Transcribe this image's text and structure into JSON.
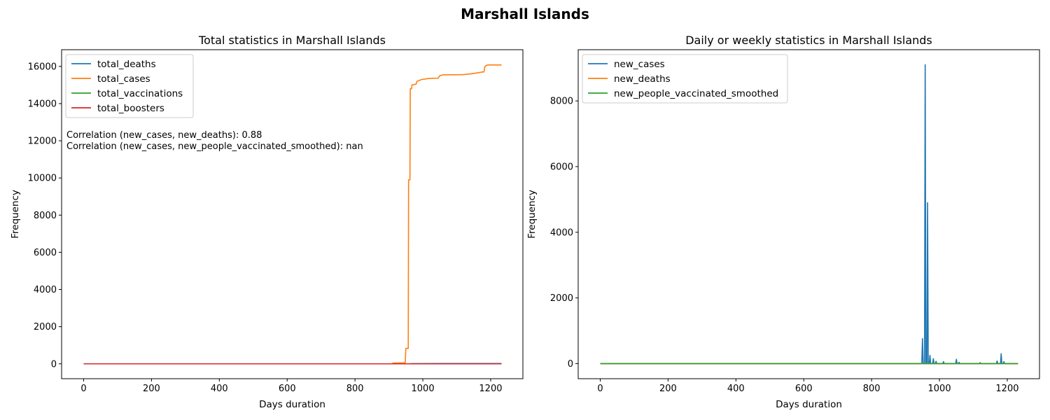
{
  "figure": {
    "title": "Marshall Islands"
  },
  "chart_data": [
    {
      "type": "line",
      "title": "Total statistics in Marshall Islands",
      "xlabel": "Days duration",
      "ylabel": "Frequency",
      "xlim": [
        -65,
        1295
      ],
      "ylim": [
        -800,
        16900
      ],
      "xticks": [
        0,
        200,
        400,
        600,
        800,
        1000,
        1200
      ],
      "yticks": [
        0,
        2000,
        4000,
        6000,
        8000,
        10000,
        12000,
        14000,
        16000
      ],
      "legend_placement": "upper-left",
      "annotations": [
        "Correlation (new_cases, new_deaths): 0.88",
        "Correlation (new_cases, new_people_vaccinated_smoothed): nan"
      ],
      "series": [
        {
          "name": "total_deaths",
          "color": "#1f77b4",
          "points": [
            [
              0,
              0
            ],
            [
              958,
              0
            ],
            [
              965,
              8
            ],
            [
              975,
              12
            ],
            [
              1000,
              14
            ],
            [
              1100,
              17
            ],
            [
              1232,
              17
            ]
          ]
        },
        {
          "name": "total_cases",
          "color": "#ff7f0e",
          "points": [
            [
              0,
              0
            ],
            [
              900,
              0
            ],
            [
              910,
              4
            ],
            [
              912,
              40
            ],
            [
              925,
              45
            ],
            [
              940,
              50
            ],
            [
              948,
              55
            ],
            [
              950,
              830
            ],
            [
              957,
              830
            ],
            [
              958,
              9900
            ],
            [
              962,
              9900
            ],
            [
              963,
              14800
            ],
            [
              967,
              14800
            ],
            [
              968,
              15000
            ],
            [
              980,
              15050
            ],
            [
              983,
              15200
            ],
            [
              990,
              15250
            ],
            [
              997,
              15300
            ],
            [
              1010,
              15330
            ],
            [
              1015,
              15350
            ],
            [
              1025,
              15360
            ],
            [
              1045,
              15370
            ],
            [
              1050,
              15500
            ],
            [
              1060,
              15550
            ],
            [
              1090,
              15550
            ],
            [
              1120,
              15560
            ],
            [
              1140,
              15600
            ],
            [
              1160,
              15650
            ],
            [
              1175,
              15700
            ],
            [
              1180,
              15700
            ],
            [
              1183,
              15990
            ],
            [
              1187,
              16050
            ],
            [
              1192,
              16080
            ],
            [
              1200,
              16080
            ],
            [
              1232,
              16080
            ]
          ]
        },
        {
          "name": "total_vaccinations",
          "color": "#2ca02c",
          "points": [
            [
              0,
              0
            ],
            [
              1232,
              0
            ]
          ]
        },
        {
          "name": "total_boosters",
          "color": "#d62728",
          "points": [
            [
              0,
              0
            ],
            [
              1232,
              0
            ]
          ]
        }
      ]
    },
    {
      "type": "line",
      "title": "Daily or weekly statistics in Marshall Islands",
      "xlabel": "Days duration",
      "ylabel": "Frequency",
      "xlim": [
        -65,
        1295
      ],
      "ylim": [
        -460,
        9560
      ],
      "xticks": [
        0,
        200,
        400,
        600,
        800,
        1000,
        1200
      ],
      "yticks": [
        0,
        2000,
        4000,
        6000,
        8000
      ],
      "legend_placement": "upper-left",
      "series": [
        {
          "name": "new_cases",
          "color": "#1f77b4",
          "points": [
            [
              0,
              0
            ],
            [
              945,
              0
            ],
            [
              948,
              10
            ],
            [
              950,
              760
            ],
            [
              952,
              0
            ],
            [
              956,
              0
            ],
            [
              958,
              9100
            ],
            [
              960,
              0
            ],
            [
              963,
              0
            ],
            [
              965,
              4900
            ],
            [
              967,
              0
            ],
            [
              970,
              0
            ],
            [
              972,
              250
            ],
            [
              974,
              0
            ],
            [
              980,
              0
            ],
            [
              982,
              150
            ],
            [
              984,
              0
            ],
            [
              988,
              0
            ],
            [
              990,
              70
            ],
            [
              992,
              0
            ],
            [
              1010,
              0
            ],
            [
              1012,
              60
            ],
            [
              1014,
              0
            ],
            [
              1048,
              0
            ],
            [
              1050,
              130
            ],
            [
              1052,
              0
            ],
            [
              1056,
              0
            ],
            [
              1058,
              40
            ],
            [
              1060,
              0
            ],
            [
              1118,
              0
            ],
            [
              1120,
              30
            ],
            [
              1122,
              0
            ],
            [
              1168,
              0
            ],
            [
              1170,
              80
            ],
            [
              1172,
              0
            ],
            [
              1180,
              0
            ],
            [
              1182,
              300
            ],
            [
              1184,
              0
            ],
            [
              1188,
              0
            ],
            [
              1190,
              60
            ],
            [
              1192,
              0
            ],
            [
              1232,
              0
            ]
          ]
        },
        {
          "name": "new_deaths",
          "color": "#ff7f0e",
          "points": [
            [
              0,
              0
            ],
            [
              1232,
              0
            ]
          ]
        },
        {
          "name": "new_people_vaccinated_smoothed",
          "color": "#2ca02c",
          "points": [
            [
              0,
              0
            ],
            [
              1232,
              0
            ]
          ]
        }
      ]
    }
  ]
}
